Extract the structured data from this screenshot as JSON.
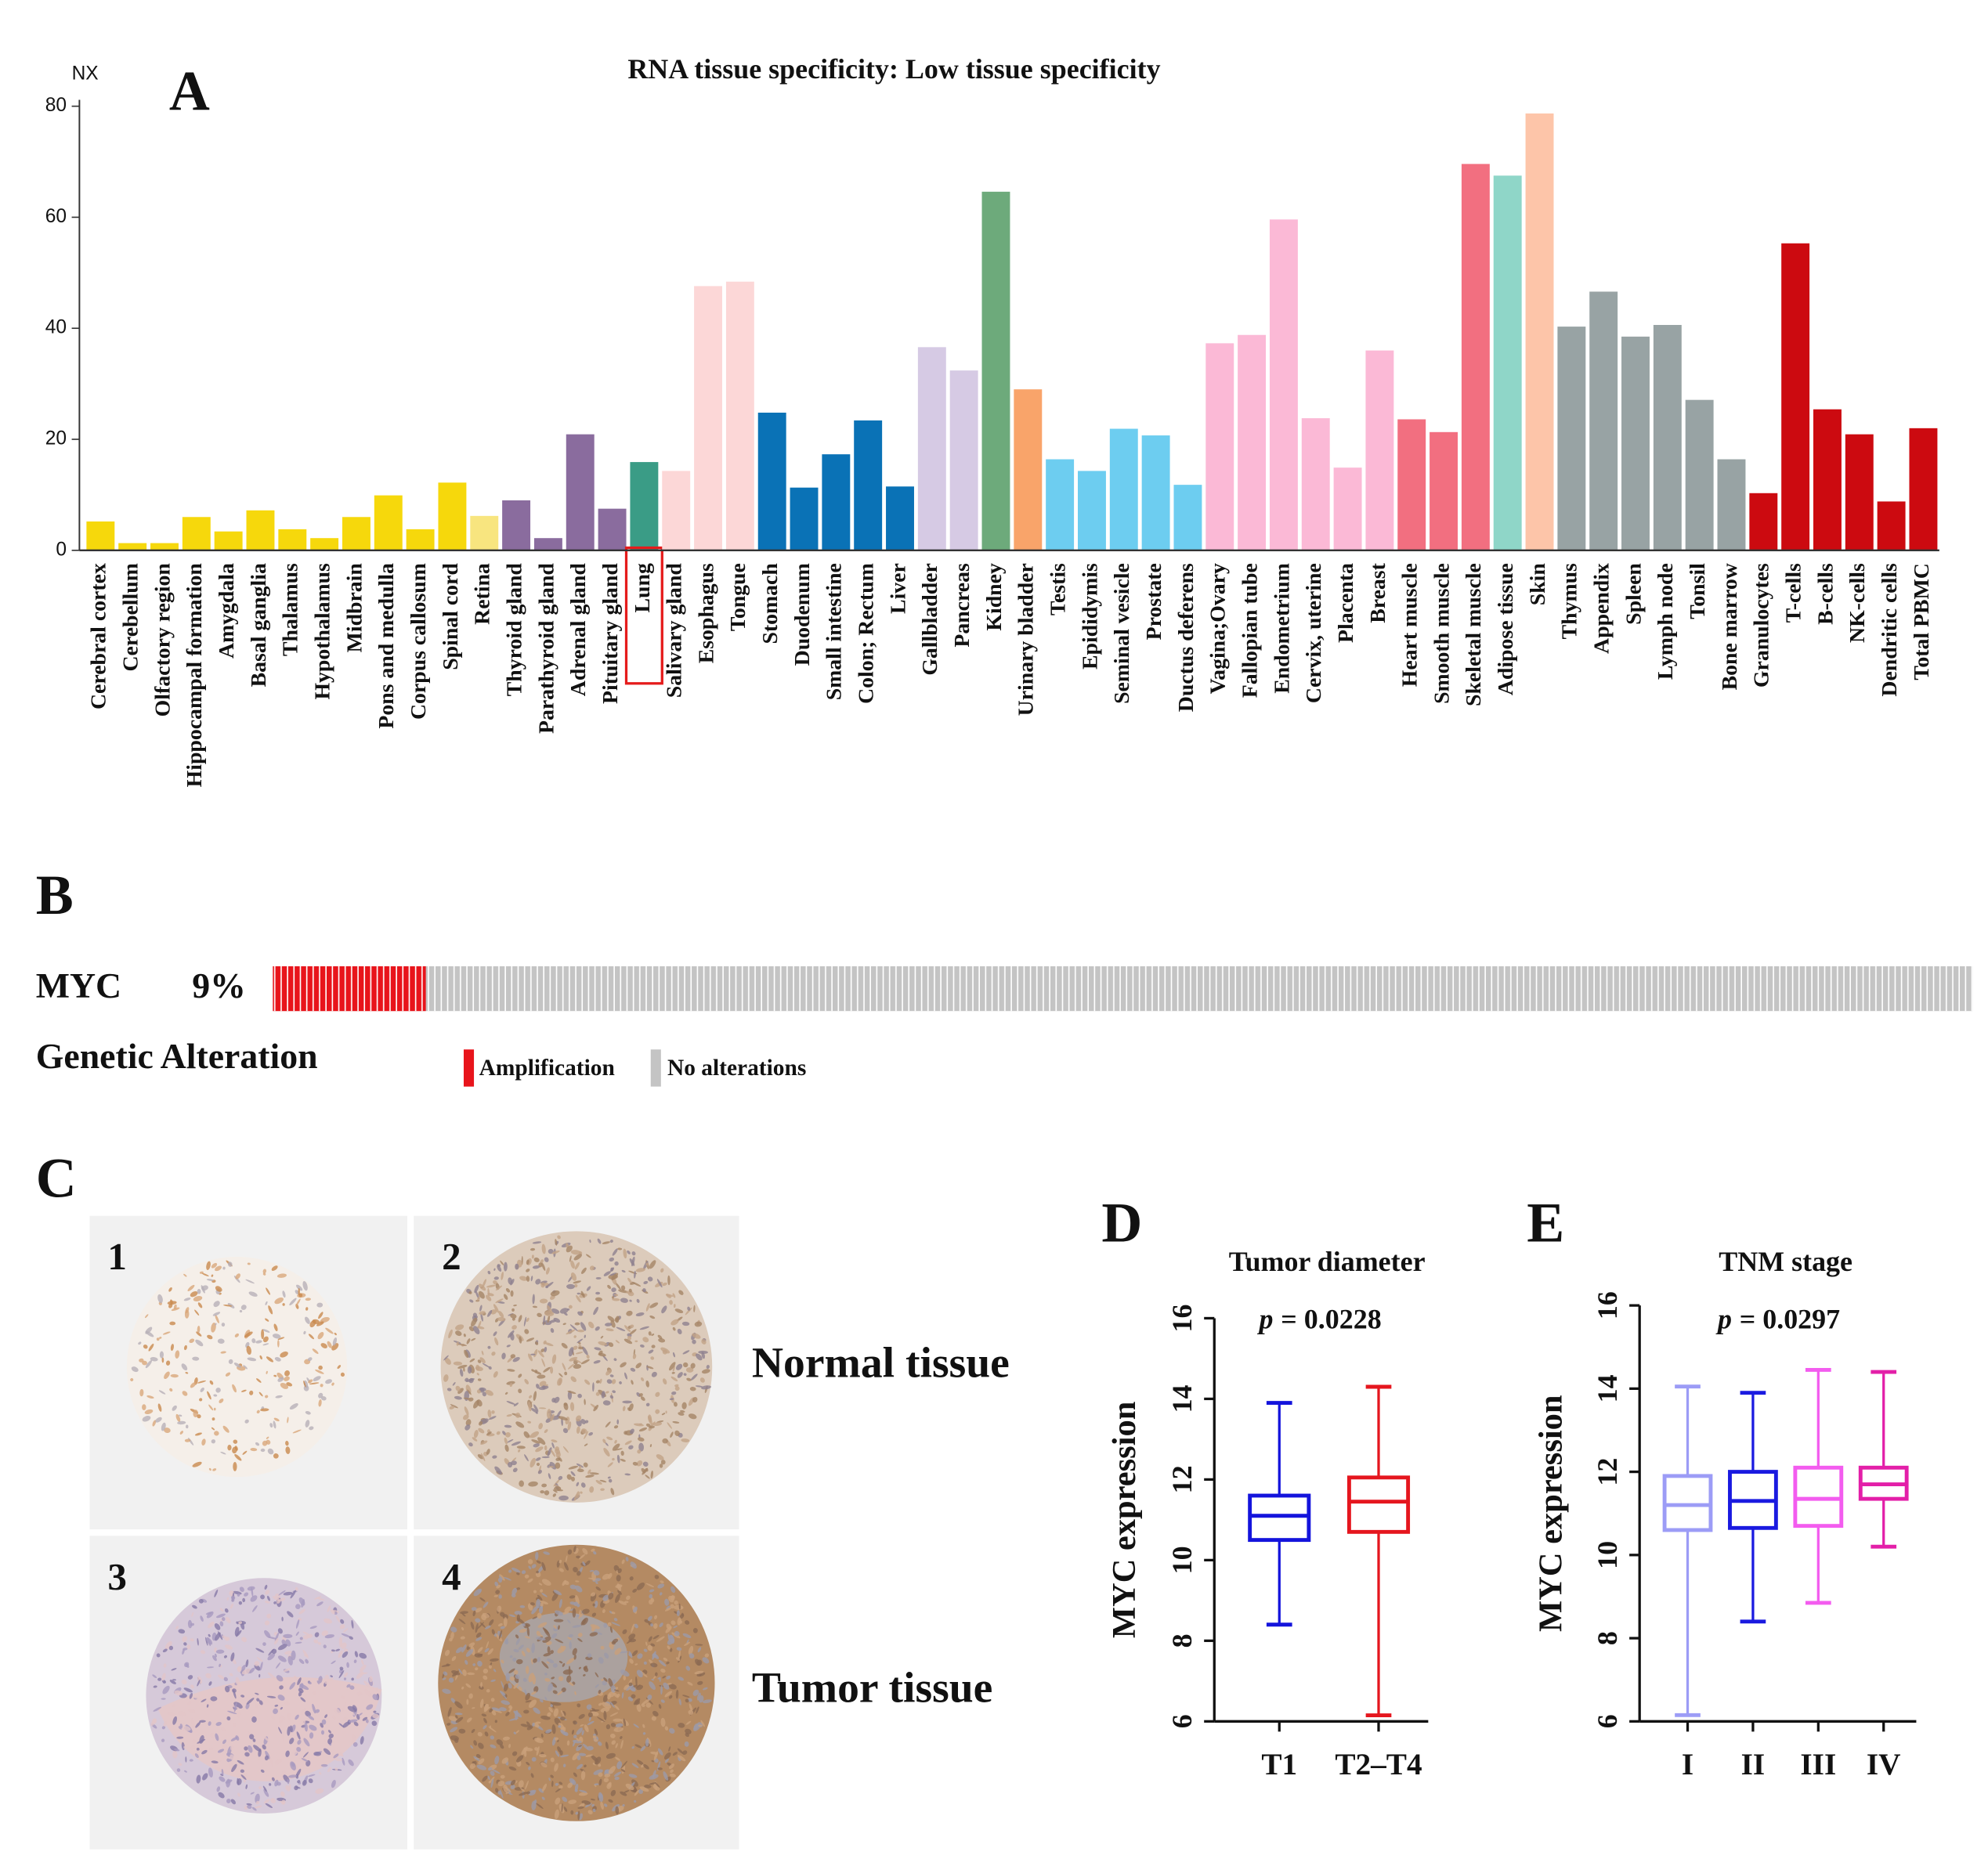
{
  "chart_data": [
    {
      "type": "bar",
      "panel": "A",
      "title": "RNA tissue specificity: Low tissue specificity",
      "ylabel": "NX",
      "categories": [
        "Cerebral cortex",
        "Cerebellum",
        "Olfactory region",
        "Hippocampal formation",
        "Amygdala",
        "Basal ganglia",
        "Thalamus",
        "Hypothalamus",
        "Midbrain",
        "Pons and medulla",
        "Corpus callosum",
        "Spinal cord",
        "Retina",
        "Thyroid gland",
        "Parathyroid gland",
        "Adrenal gland",
        "Pituitary gland",
        "Lung",
        "Salivary gland",
        "Esophagus",
        "Tongue",
        "Stomach",
        "Duodenum",
        "Small intestine",
        "Colon; Rectum",
        "Liver",
        "Gallbladder",
        "Pancreas",
        "Kidney",
        "Urinary bladder",
        "Testis",
        "Epididymis",
        "Seminal vesicle",
        "Prostate",
        "Ductus deferens",
        "Vagina;Ovary",
        "Fallopian tube",
        "Endometrium",
        "Cervix, uterine",
        "Placenta",
        "Breast",
        "Heart muscle",
        "Smooth muscle",
        "Skeletal muscle",
        "Adipose tissue",
        "Skin",
        "Thymus",
        "Appendix",
        "Spleen",
        "Lymph node",
        "Tonsil",
        "Bone marrow",
        "Granulocytes",
        "T-cells",
        "B-cells",
        "NK-cells",
        "Dendritic cells",
        "Total PBMC"
      ],
      "values": [
        5.2,
        1.3,
        1.3,
        6,
        3.4,
        7.2,
        3.8,
        2.2,
        6,
        9.9,
        3.8,
        12.2,
        6.2,
        9,
        2.2,
        20.9,
        7.5,
        15.9,
        14.3,
        47.6,
        48.4,
        24.8,
        11.3,
        17.3,
        23.4,
        11.5,
        36.6,
        32.4,
        64.6,
        29,
        16.4,
        14.3,
        21.9,
        20.7,
        11.8,
        37.3,
        38.8,
        59.6,
        23.8,
        14.9,
        36,
        23.6,
        21.3,
        69.6,
        67.5,
        78.7,
        40.3,
        46.6,
        38.5,
        40.6,
        27.1,
        16.4,
        10.3,
        55.3,
        25.4,
        20.9,
        8.8,
        22
      ],
      "colors": [
        "#f6d80c",
        "#f6d80c",
        "#f6d80c",
        "#f6d80c",
        "#f6d80c",
        "#f6d80c",
        "#f6d80c",
        "#f6d80c",
        "#f6d80c",
        "#f6d80c",
        "#f6d80c",
        "#f6d80c",
        "#f8e57f",
        "#8a6c9e",
        "#8a6c9e",
        "#8a6c9e",
        "#8a6c9e",
        "#3a9c86",
        "#fcd7d7",
        "#fcd7d7",
        "#fcd7d7",
        "#0a72b6",
        "#0a72b6",
        "#0a72b6",
        "#0a72b6",
        "#0a72b6",
        "#d6cae4",
        "#d6cae4",
        "#6daa7b",
        "#f9a46a",
        "#6dcdf0",
        "#6dcdf0",
        "#6dcdf0",
        "#6dcdf0",
        "#6dcdf0",
        "#fbb9d6",
        "#fbb9d6",
        "#fbb9d6",
        "#fbb9d6",
        "#fbb9d6",
        "#fbb9d6",
        "#f26f80",
        "#f26f80",
        "#f26f80",
        "#8fd6c8",
        "#fdc5a9",
        "#98a3a4",
        "#98a3a4",
        "#98a3a4",
        "#98a3a4",
        "#98a3a4",
        "#98a3a4",
        "#cc0a10",
        "#cc0a10",
        "#cc0a10",
        "#cc0a10",
        "#cc0a10",
        "#cc0a10"
      ],
      "ylim": [
        0,
        80
      ],
      "yticks": [
        0,
        20,
        40,
        60,
        80
      ],
      "grid": false
    },
    {
      "type": "oncoprint",
      "panel": "B",
      "gene": "MYC",
      "values": [
        9
      ],
      "value_labels": [
        "9%"
      ],
      "legend_title": "Genetic Alteration",
      "legend": [
        {
          "name": "Amplification",
          "color": "#e8141b"
        },
        {
          "name": "No alterations",
          "color": "#c4c4c4"
        }
      ]
    },
    {
      "type": "box",
      "panel": "D",
      "title": "Tumor diameter",
      "p_label": "p",
      "p_value": "= 0.0228",
      "ylabel": "MYC expression",
      "categories": [
        "T1",
        "T2–T4"
      ],
      "colors": [
        "#1414dc",
        "#e5161e"
      ],
      "stats": [
        {
          "min": 8.4,
          "q1": 10.5,
          "median": 11.1,
          "q3": 11.6,
          "max": 13.9
        },
        {
          "min": 6.15,
          "q1": 10.7,
          "median": 11.45,
          "q3": 12.05,
          "max": 14.3
        }
      ],
      "ylim": [
        6,
        16
      ],
      "yticks": [
        6,
        8,
        10,
        12,
        14,
        16
      ]
    },
    {
      "type": "box",
      "panel": "E",
      "title": "TNM stage",
      "p_label": "p",
      "p_value": "= 0.0297",
      "ylabel": "MYC expression",
      "categories": [
        "I",
        "II",
        "III",
        "IV"
      ],
      "colors": [
        "#9c9cf6",
        "#1a1ae0",
        "#f35cef",
        "#e31fa8"
      ],
      "stats": [
        {
          "min": 6.15,
          "q1": 10.6,
          "median": 11.2,
          "q3": 11.9,
          "max": 14.05
        },
        {
          "min": 8.4,
          "q1": 10.65,
          "median": 11.3,
          "q3": 12.0,
          "max": 13.9
        },
        {
          "min": 8.85,
          "q1": 10.7,
          "median": 11.35,
          "q3": 12.1,
          "max": 14.45
        },
        {
          "min": 10.2,
          "q1": 11.35,
          "median": 11.7,
          "q3": 12.1,
          "max": 14.4
        }
      ],
      "ylim": [
        6,
        16
      ],
      "yticks": [
        6,
        8,
        10,
        12,
        14,
        16
      ]
    }
  ],
  "panel_c": {
    "label": "C",
    "tiles": [
      "1",
      "2",
      "3",
      "4"
    ],
    "rows": [
      "Normal tissue",
      "Tumor tissue"
    ]
  }
}
